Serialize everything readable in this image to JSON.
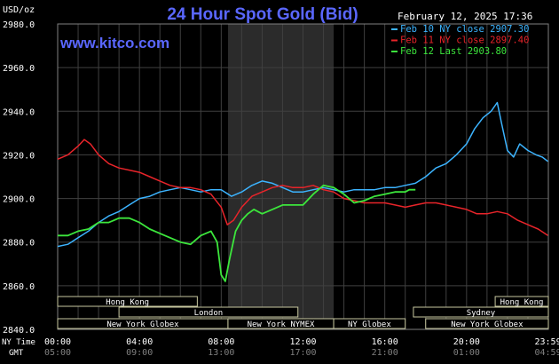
{
  "header": {
    "title": "24 Hour Spot Gold (Bid)",
    "date": "February 12, 2025 17:36",
    "unit": "USD/oz",
    "website": "www.kitco.com"
  },
  "axis_labels": {
    "ny_time": "NY Time",
    "gmt": "GMT"
  },
  "market_sessions": {
    "row1": [
      {
        "name": "Hong Kong",
        "start": 0,
        "end": 6.83
      },
      {
        "name": "Hong Kong",
        "start": 21.4,
        "end": 24
      }
    ],
    "row2": [
      {
        "name": "London",
        "start": 3.0,
        "end": 11.75
      },
      {
        "name": "Sydney",
        "start": 17.4,
        "end": 24
      }
    ],
    "row3": [
      {
        "name": "New York Globex",
        "start": 0,
        "end": 8.33
      },
      {
        "name": "New York NYMEX",
        "start": 8.33,
        "end": 13.5
      },
      {
        "name": "NY Globex",
        "start": 13.5,
        "end": 17.0
      },
      {
        "name": "New York Globex",
        "start": 18.0,
        "end": 24
      }
    ]
  },
  "colors": {
    "background": "#000000",
    "grid": "#404040",
    "nymex_band": "#2b2b2b",
    "title": "#5a67ff",
    "feb10": "#3cb4ff",
    "feb11": "#e8242a",
    "feb12": "#3ce63c",
    "text": "#ffffff"
  },
  "chart_data": {
    "type": "line",
    "title": "24 Hour Spot Gold (Bid)",
    "ylabel": "USD/oz",
    "xlabel": "NY Time",
    "ylim": [
      2840,
      2980
    ],
    "xlim": [
      0,
      24
    ],
    "yticks": [
      "2840.0",
      "2860.0",
      "2880.0",
      "2900.0",
      "2920.0",
      "2940.0",
      "2960.0",
      "2980.0"
    ],
    "xticks_ny": [
      "00:00",
      "04:00",
      "08:00",
      "12:00",
      "16:00",
      "20:00",
      "23:59"
    ],
    "xticks_gmt": [
      "05:00",
      "09:00",
      "13:00",
      "17:00",
      "21:00",
      "01:00",
      "04:59"
    ],
    "grid": true,
    "legend_position": "top-right",
    "series": [
      {
        "name": "Feb 10 NY close 2907.30",
        "x": [
          0,
          0.5,
          1.0,
          1.5,
          2.0,
          2.5,
          3.0,
          3.5,
          4.0,
          4.5,
          5.0,
          5.5,
          6.0,
          6.5,
          7.0,
          7.5,
          8.0,
          8.5,
          9.0,
          9.5,
          10.0,
          10.5,
          11.0,
          11.5,
          12.0,
          12.5,
          13.0,
          13.5,
          14.0,
          14.5,
          15.0,
          15.5,
          16.0,
          16.5,
          17.0,
          17.5,
          18.0,
          18.5,
          19.0,
          19.5,
          20.0,
          20.4,
          20.8,
          21.2,
          21.5,
          21.7,
          22.0,
          22.3,
          22.6,
          23.0,
          23.4,
          23.7,
          23.98
        ],
        "y": [
          2878,
          2879,
          2882,
          2885,
          2889,
          2892,
          2894,
          2897,
          2900,
          2901,
          2903,
          2904,
          2905,
          2904,
          2903,
          2904,
          2904,
          2901,
          2903,
          2906,
          2908,
          2907,
          2905,
          2903,
          2903,
          2904,
          2905,
          2904,
          2903,
          2904,
          2904,
          2904,
          2905,
          2905,
          2906,
          2907,
          2910,
          2914,
          2916,
          2920,
          2925,
          2932,
          2937,
          2940,
          2944,
          2935,
          2922,
          2919,
          2925,
          2922,
          2920,
          2919,
          2917
        ]
      },
      {
        "name": "Feb 11 NY close 2897.40",
        "x": [
          0,
          0.5,
          1.0,
          1.3,
          1.6,
          2.0,
          2.5,
          3.0,
          3.5,
          4.0,
          4.5,
          5.0,
          5.5,
          6.0,
          6.5,
          7.0,
          7.5,
          8.0,
          8.3,
          8.6,
          9.0,
          9.5,
          10.0,
          10.5,
          11.0,
          11.5,
          12.0,
          12.5,
          13.0,
          13.5,
          14.0,
          14.5,
          15.0,
          15.5,
          16.0,
          16.5,
          17.0,
          17.5,
          18.0,
          18.5,
          19.0,
          19.5,
          20.0,
          20.5,
          21.0,
          21.5,
          22.0,
          22.5,
          23.0,
          23.5,
          23.98
        ],
        "y": [
          2918,
          2920,
          2924,
          2927,
          2925,
          2920,
          2916,
          2914,
          2913,
          2912,
          2910,
          2908,
          2906,
          2905,
          2905,
          2904,
          2902,
          2896,
          2888,
          2890,
          2896,
          2901,
          2903,
          2905,
          2906,
          2905,
          2905,
          2906,
          2904,
          2903,
          2900,
          2899,
          2898,
          2898,
          2898,
          2897,
          2896,
          2897,
          2898,
          2898,
          2897,
          2896,
          2895,
          2893,
          2893,
          2894,
          2893,
          2890,
          2888,
          2886,
          2883
        ]
      },
      {
        "name": "Feb 12 Last 2903.80",
        "x": [
          0,
          0.5,
          1.0,
          1.5,
          2.0,
          2.5,
          3.0,
          3.5,
          4.0,
          4.5,
          5.0,
          5.5,
          6.0,
          6.5,
          7.0,
          7.5,
          7.8,
          8.0,
          8.2,
          8.4,
          8.7,
          9.0,
          9.3,
          9.6,
          10.0,
          10.5,
          11.0,
          11.5,
          12.0,
          12.5,
          13.0,
          13.5,
          14.0,
          14.5,
          15.0,
          15.5,
          16.0,
          16.5,
          17.0,
          17.2,
          17.5
        ],
        "y": [
          2883,
          2883,
          2885,
          2886,
          2889,
          2889,
          2891,
          2891,
          2889,
          2886,
          2884,
          2882,
          2880,
          2879,
          2883,
          2885,
          2880,
          2865,
          2862,
          2872,
          2885,
          2890,
          2893,
          2895,
          2893,
          2895,
          2897,
          2897,
          2897,
          2902,
          2906,
          2905,
          2902,
          2898,
          2899,
          2901,
          2902,
          2903,
          2903,
          2904,
          2904
        ]
      }
    ]
  }
}
